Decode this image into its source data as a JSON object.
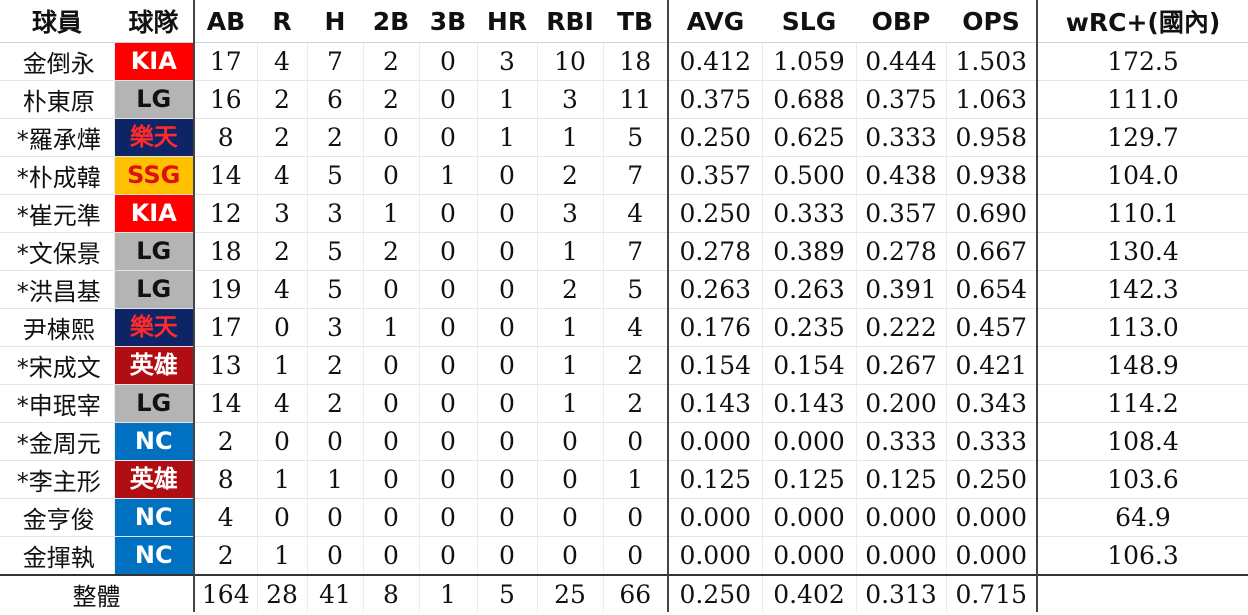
{
  "colors": {
    "KIA": {
      "bg": "#ff0000",
      "fg": "#ffffff"
    },
    "LG": {
      "bg": "#b4b4b4",
      "fg": "#111111"
    },
    "樂天": {
      "bg": "#0d2466",
      "fg": "#ff2a2a"
    },
    "SSG": {
      "bg": "#ffc000",
      "fg": "#e01010"
    },
    "英雄": {
      "bg": "#b00e12",
      "fg": "#ffffff"
    },
    "NC": {
      "bg": "#0070c0",
      "fg": "#ffffff"
    }
  },
  "headers": [
    "球員",
    "球隊",
    "AB",
    "R",
    "H",
    "2B",
    "3B",
    "HR",
    "RBI",
    "TB",
    "AVG",
    "SLG",
    "OBP",
    "OPS",
    "wRC+(國內)"
  ],
  "rows": [
    {
      "player": "金倒永",
      "team": "KIA",
      "stats": [
        "17",
        "4",
        "7",
        "2",
        "0",
        "3",
        "10",
        "18"
      ],
      "rates": [
        "0.412",
        "1.059",
        "0.444",
        "1.503"
      ],
      "wrc": "172.5"
    },
    {
      "player": "朴東原",
      "team": "LG",
      "stats": [
        "16",
        "2",
        "6",
        "2",
        "0",
        "1",
        "3",
        "11"
      ],
      "rates": [
        "0.375",
        "0.688",
        "0.375",
        "1.063"
      ],
      "wrc": "111.0"
    },
    {
      "player": "*羅承燁",
      "team": "樂天",
      "stats": [
        "8",
        "2",
        "2",
        "0",
        "0",
        "1",
        "1",
        "5"
      ],
      "rates": [
        "0.250",
        "0.625",
        "0.333",
        "0.958"
      ],
      "wrc": "129.7"
    },
    {
      "player": "*朴成韓",
      "team": "SSG",
      "stats": [
        "14",
        "4",
        "5",
        "0",
        "1",
        "0",
        "2",
        "7"
      ],
      "rates": [
        "0.357",
        "0.500",
        "0.438",
        "0.938"
      ],
      "wrc": "104.0"
    },
    {
      "player": "*崔元準",
      "team": "KIA",
      "stats": [
        "12",
        "3",
        "3",
        "1",
        "0",
        "0",
        "3",
        "4"
      ],
      "rates": [
        "0.250",
        "0.333",
        "0.357",
        "0.690"
      ],
      "wrc": "110.1"
    },
    {
      "player": "*文保景",
      "team": "LG",
      "stats": [
        "18",
        "2",
        "5",
        "2",
        "0",
        "0",
        "1",
        "7"
      ],
      "rates": [
        "0.278",
        "0.389",
        "0.278",
        "0.667"
      ],
      "wrc": "130.4"
    },
    {
      "player": "*洪昌基",
      "team": "LG",
      "stats": [
        "19",
        "4",
        "5",
        "0",
        "0",
        "0",
        "2",
        "5"
      ],
      "rates": [
        "0.263",
        "0.263",
        "0.391",
        "0.654"
      ],
      "wrc": "142.3"
    },
    {
      "player": "尹棟熙",
      "team": "樂天",
      "stats": [
        "17",
        "0",
        "3",
        "1",
        "0",
        "0",
        "1",
        "4"
      ],
      "rates": [
        "0.176",
        "0.235",
        "0.222",
        "0.457"
      ],
      "wrc": "113.0"
    },
    {
      "player": "*宋成文",
      "team": "英雄",
      "stats": [
        "13",
        "1",
        "2",
        "0",
        "0",
        "0",
        "1",
        "2"
      ],
      "rates": [
        "0.154",
        "0.154",
        "0.267",
        "0.421"
      ],
      "wrc": "148.9"
    },
    {
      "player": "*申珉宰",
      "team": "LG",
      "stats": [
        "14",
        "4",
        "2",
        "0",
        "0",
        "0",
        "1",
        "2"
      ],
      "rates": [
        "0.143",
        "0.143",
        "0.200",
        "0.343"
      ],
      "wrc": "114.2"
    },
    {
      "player": "*金周元",
      "team": "NC",
      "stats": [
        "2",
        "0",
        "0",
        "0",
        "0",
        "0",
        "0",
        "0"
      ],
      "rates": [
        "0.000",
        "0.000",
        "0.333",
        "0.333"
      ],
      "wrc": "108.4"
    },
    {
      "player": "*李主形",
      "team": "英雄",
      "stats": [
        "8",
        "1",
        "1",
        "0",
        "0",
        "0",
        "0",
        "1"
      ],
      "rates": [
        "0.125",
        "0.125",
        "0.125",
        "0.250"
      ],
      "wrc": "103.6"
    },
    {
      "player": "金亨俊",
      "team": "NC",
      "stats": [
        "4",
        "0",
        "0",
        "0",
        "0",
        "0",
        "0",
        "0"
      ],
      "rates": [
        "0.000",
        "0.000",
        "0.000",
        "0.000"
      ],
      "wrc": "64.9"
    },
    {
      "player": "金揮執",
      "team": "NC",
      "stats": [
        "2",
        "1",
        "0",
        "0",
        "0",
        "0",
        "0",
        "0"
      ],
      "rates": [
        "0.000",
        "0.000",
        "0.000",
        "0.000"
      ],
      "wrc": "106.3"
    }
  ],
  "total": {
    "label": "整體",
    "stats": [
      "164",
      "28",
      "41",
      "8",
      "1",
      "5",
      "25",
      "66"
    ],
    "rates": [
      "0.250",
      "0.402",
      "0.313",
      "0.715"
    ],
    "wrc": ""
  }
}
